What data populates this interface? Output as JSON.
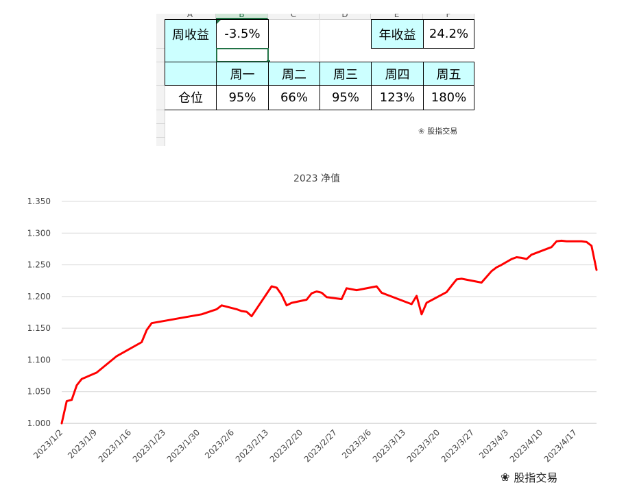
{
  "sheet": {
    "col_headers": [
      "A",
      "B",
      "C",
      "D",
      "E",
      "F"
    ],
    "row1": {
      "label_week": "周收益",
      "week_value": "-3.5%",
      "label_year": "年收益",
      "year_value": "24.2%"
    },
    "weekdays": [
      "周一",
      "周二",
      "周三",
      "周四",
      "周五"
    ],
    "position_label": "仓位",
    "positions": [
      "95%",
      "66%",
      "95%",
      "123%",
      "180%"
    ],
    "watermark": "股指交易"
  },
  "bottom_watermark": "股指交易",
  "colors": {
    "cyan": "#ccffff",
    "line": "#ff0000",
    "grid": "#d9d9d9"
  },
  "chart_data": {
    "type": "line",
    "title": "2023 净值",
    "xlabel": "",
    "ylabel": "",
    "ylim": [
      1.0,
      1.35
    ],
    "yticks": [
      "1.000",
      "1.050",
      "1.100",
      "1.150",
      "1.200",
      "1.250",
      "1.300",
      "1.350"
    ],
    "xticks": [
      "2023/1/2",
      "2023/1/9",
      "2023/1/16",
      "2023/1/23",
      "2023/1/30",
      "2023/2/6",
      "2023/2/13",
      "2023/2/20",
      "2023/2/27",
      "2023/3/6",
      "2023/3/13",
      "2023/3/20",
      "2023/3/27",
      "2023/4/3",
      "2023/4/10",
      "2023/4/17"
    ],
    "series": [
      {
        "name": "净值",
        "x": [
          0,
          1,
          2,
          3,
          4,
          7,
          11,
          16,
          17,
          18,
          28,
          31,
          32,
          35,
          36,
          37,
          38,
          42,
          43,
          44,
          45,
          46,
          49,
          50,
          51,
          52,
          53,
          56,
          57,
          59,
          63,
          64,
          65,
          70,
          71,
          72,
          73,
          77,
          78,
          79,
          80,
          84,
          86,
          87,
          88,
          90,
          91,
          92,
          93,
          94,
          98,
          99,
          100,
          101
        ],
        "values": [
          1.0,
          1.035,
          1.037,
          1.06,
          1.07,
          1.08,
          1.106,
          1.128,
          1.147,
          1.158,
          1.172,
          1.18,
          1.186,
          1.18,
          1.177,
          1.176,
          1.169,
          1.216,
          1.214,
          1.203,
          1.186,
          1.19,
          1.195,
          1.205,
          1.208,
          1.206,
          1.199,
          1.196,
          1.213,
          1.21,
          1.216,
          1.206,
          1.203,
          1.188,
          1.201,
          1.172,
          1.19,
          1.207,
          1.217,
          1.227,
          1.228,
          1.222,
          1.24,
          1.246,
          1.25,
          1.259,
          1.262,
          1.261,
          1.259,
          1.266,
          1.278,
          1.287,
          1.288,
          1.287
        ],
        "extra_x": [
          104,
          105,
          106,
          107
        ],
        "extra_values": [
          1.287,
          1.286,
          1.28,
          1.242
        ]
      }
    ]
  }
}
